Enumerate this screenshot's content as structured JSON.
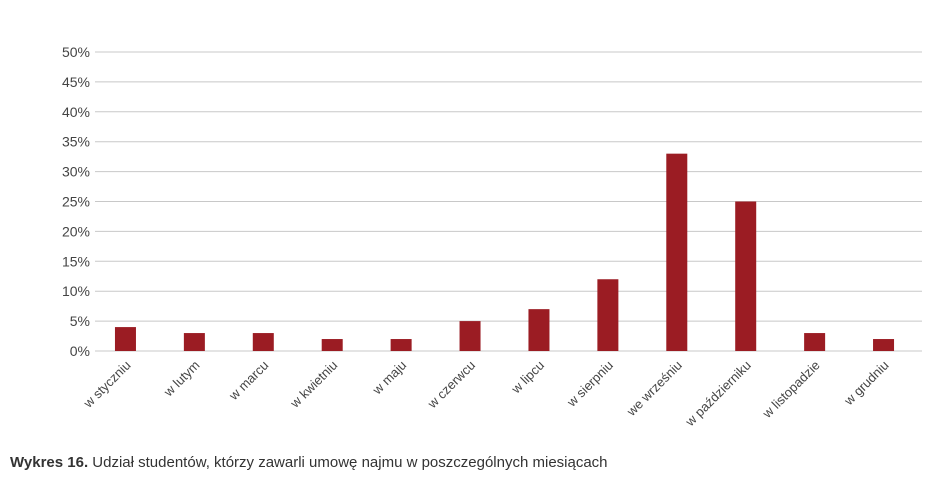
{
  "chart_data": {
    "type": "bar",
    "categories": [
      "w styczniu",
      "w lutym",
      "w marcu",
      "w kwietniu",
      "w maju",
      "w czerwcu",
      "w lipcu",
      "w sierpniu",
      "we wrześniu",
      "w październiku",
      "w listopadzie",
      "w grudniu"
    ],
    "values": [
      4,
      3,
      3,
      2,
      2,
      5,
      7,
      12,
      33,
      25,
      3,
      2
    ],
    "y_ticks": [
      "0%",
      "5%",
      "10%",
      "15%",
      "20%",
      "25%",
      "30%",
      "35%",
      "40%",
      "45%",
      "50%"
    ],
    "ylim": [
      0,
      50
    ],
    "grid": true,
    "bar_color": "#9b1c23",
    "grid_color": "#c8c8c8"
  },
  "caption": {
    "label": "Wykres 16.",
    "text": " Udział studentów, którzy zawarli umowę najmu w poszczególnych miesiącach"
  }
}
